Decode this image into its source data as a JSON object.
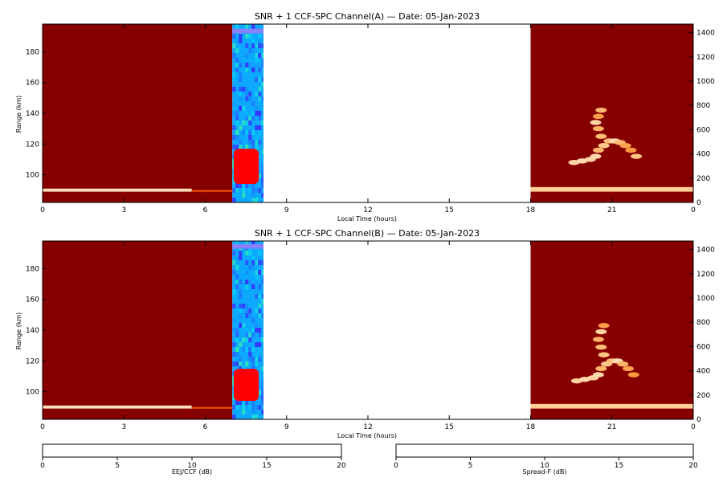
{
  "chart_data": [
    {
      "type": "heatmap",
      "panel": "A",
      "title": "SNR + 1 CCF-SPC Channel(A) — Date: 05-Jan-2023",
      "xlabel": "Local Time (hours)",
      "ylabel": "Range (km)",
      "xlim": [
        0,
        24
      ],
      "ylim": [
        82,
        198
      ],
      "y2lim": [
        0,
        1470
      ],
      "x_ticks": [
        "0",
        "3",
        "6",
        "9",
        "12",
        "15",
        "18",
        "21",
        "0"
      ],
      "y_ticks": [
        "100",
        "120",
        "140",
        "160",
        "180"
      ],
      "y2_ticks": [
        "0",
        "200",
        "400",
        "600",
        "800",
        "1000",
        "1200",
        "1400"
      ],
      "segments": [
        {
          "name": "night",
          "x": [
            0,
            7.0
          ],
          "colormap": "Spread-F",
          "background_db": 2
        },
        {
          "name": "eej",
          "x": [
            7.0,
            8.15
          ],
          "colormap": "EEJ/CCF",
          "background_db": 6
        },
        {
          "name": "nodata",
          "x": [
            8.15,
            18.0
          ]
        },
        {
          "name": "night",
          "x": [
            18.0,
            24.0
          ],
          "colormap": "Spread-F",
          "background_db": 2
        }
      ],
      "features": [
        {
          "type": "layer",
          "x": [
            0,
            5.5
          ],
          "y": [
            89,
            91
          ],
          "db": 18
        },
        {
          "type": "layer",
          "x": [
            5.5,
            7.0
          ],
          "y": [
            89,
            90
          ],
          "db": 10
        },
        {
          "type": "layer",
          "x": [
            18.0,
            24.0
          ],
          "y": [
            89,
            92
          ],
          "db": 17
        },
        {
          "type": "eej_blob",
          "x": [
            7.05,
            8.15
          ],
          "y": [
            94,
            120
          ],
          "db": 20
        },
        {
          "type": "eej_band",
          "x": [
            7.0,
            8.15
          ],
          "y": [
            192,
            195
          ],
          "db": 2
        },
        {
          "type": "spread_f",
          "points": [
            [
              19.6,
              108
            ],
            [
              19.9,
              109
            ],
            [
              20.2,
              110
            ],
            [
              20.4,
              112
            ],
            [
              20.5,
              116
            ],
            [
              20.7,
              119
            ],
            [
              20.9,
              122
            ],
            [
              21.1,
              122
            ],
            [
              21.3,
              121
            ],
            [
              21.5,
              119
            ],
            [
              21.7,
              116
            ],
            [
              21.9,
              112
            ],
            [
              20.6,
              125
            ],
            [
              20.5,
              130
            ],
            [
              20.4,
              134
            ],
            [
              20.5,
              138
            ],
            [
              20.6,
              142
            ]
          ],
          "db": 18
        }
      ]
    },
    {
      "type": "heatmap",
      "panel": "B",
      "title": "SNR + 1 CCF-SPC Channel(B) — Date: 05-Jan-2023",
      "xlabel": "Local Time (hours)",
      "ylabel": "Range (km)",
      "xlim": [
        0,
        24
      ],
      "ylim": [
        82,
        198
      ],
      "y2lim": [
        0,
        1470
      ],
      "x_ticks": [
        "0",
        "3",
        "6",
        "9",
        "12",
        "15",
        "18",
        "21",
        "0"
      ],
      "y_ticks": [
        "100",
        "120",
        "140",
        "160",
        "180"
      ],
      "y2_ticks": [
        "0",
        "200",
        "400",
        "600",
        "800",
        "1000",
        "1200",
        "1400"
      ],
      "segments": [
        {
          "name": "night",
          "x": [
            0,
            7.0
          ],
          "colormap": "Spread-F",
          "background_db": 2
        },
        {
          "name": "eej",
          "x": [
            7.0,
            8.15
          ],
          "colormap": "EEJ/CCF",
          "background_db": 6
        },
        {
          "name": "nodata",
          "x": [
            8.15,
            18.0
          ]
        },
        {
          "name": "night",
          "x": [
            18.0,
            24.0
          ],
          "colormap": "Spread-F",
          "background_db": 2
        }
      ],
      "features": [
        {
          "type": "layer",
          "x": [
            0,
            5.5
          ],
          "y": [
            89,
            91
          ],
          "db": 18
        },
        {
          "type": "layer",
          "x": [
            5.5,
            7.0
          ],
          "y": [
            89,
            90
          ],
          "db": 10
        },
        {
          "type": "layer",
          "x": [
            18.0,
            24.0
          ],
          "y": [
            89,
            92
          ],
          "db": 17
        },
        {
          "type": "eej_blob",
          "x": [
            7.05,
            8.15
          ],
          "y": [
            94,
            118
          ],
          "db": 20
        },
        {
          "type": "eej_band",
          "x": [
            7.0,
            8.15
          ],
          "y": [
            193,
            196
          ],
          "db": 2
        },
        {
          "type": "spread_f",
          "points": [
            [
              19.7,
              107
            ],
            [
              20.0,
              108
            ],
            [
              20.3,
              109
            ],
            [
              20.5,
              111
            ],
            [
              20.6,
              115
            ],
            [
              20.8,
              118
            ],
            [
              21.0,
              120
            ],
            [
              21.2,
              120
            ],
            [
              21.4,
              118
            ],
            [
              21.6,
              115
            ],
            [
              21.8,
              111
            ],
            [
              20.7,
              124
            ],
            [
              20.6,
              129
            ],
            [
              20.5,
              134
            ],
            [
              20.6,
              139
            ],
            [
              20.7,
              143
            ]
          ],
          "db": 18
        }
      ]
    }
  ],
  "colorbars": [
    {
      "name": "EEJ/CCF",
      "label": "EEJ/CCF (dB)",
      "range": [
        0,
        20
      ],
      "ticks": [
        "0",
        "5",
        "10",
        "15",
        "20"
      ],
      "stops": [
        "#ffffff",
        "#3a2cff",
        "#00c8ff",
        "#66ff66",
        "#ffff00",
        "#ff7a00",
        "#ff0000"
      ]
    },
    {
      "name": "Spread-F",
      "label": "Spread-F (dB)",
      "range": [
        0,
        20
      ],
      "ticks": [
        "0",
        "5",
        "10",
        "15",
        "20"
      ],
      "stops": [
        "#6b0000",
        "#990000",
        "#cc2200",
        "#ee5500",
        "#ff8a2a",
        "#ffc98a",
        "#ffffff"
      ]
    }
  ]
}
